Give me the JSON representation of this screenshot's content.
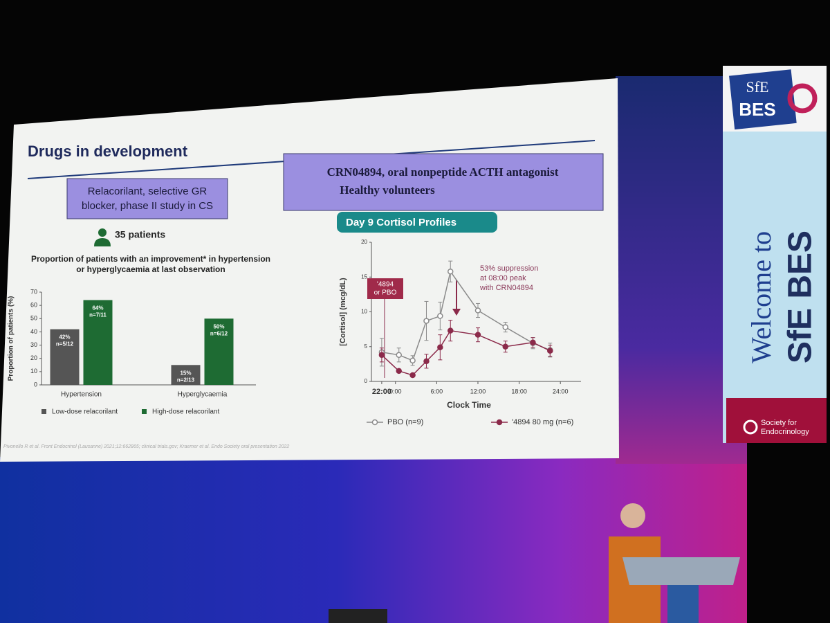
{
  "slide": {
    "title": "Drugs in development",
    "box_left": [
      "Relacorilant, selective GR",
      "blocker, phase II study in CS"
    ],
    "box_right": [
      "CRN04894, oral nonpeptide ACTH antagonist",
      "Healthy volunteers"
    ],
    "patients": "35 patients",
    "footnote": "Pivonello R et al. Front Endocrinol (Lausanne) 2021;12:662865; clinical trials.gov; Kraemer et al. Endo Society oral presentation 2022"
  },
  "banner": {
    "logo_top": "SfE",
    "logo_bottom": "BES",
    "welcome": "Welcome to",
    "name": "SfE BES",
    "society": [
      "Society for",
      "Endocrinology"
    ]
  },
  "chart_data": [
    {
      "type": "bar",
      "title": [
        "Proportion of patients with an improvement* in hypertension",
        "or hyperglycaemia at last observation"
      ],
      "y_label": "Proportion of patients (%)",
      "categories": [
        "Hypertension",
        "Hyperglycaemia"
      ],
      "series": [
        {
          "name": "Low-dose relacorilant",
          "color": "#555555",
          "values": [
            42,
            15
          ],
          "value_labels": [
            "42%",
            "15%"
          ],
          "n_labels": [
            "n=5/12",
            "n=2/13"
          ]
        },
        {
          "name": "High-dose relacorilant",
          "color": "#1e6b33",
          "values": [
            64,
            50
          ],
          "value_labels": [
            "64%",
            "50%"
          ],
          "n_labels": [
            "n=7/11",
            "n=6/12"
          ]
        }
      ],
      "ylim": [
        0,
        70
      ],
      "yticks": [
        0,
        10,
        20,
        30,
        40,
        50,
        60,
        70
      ]
    },
    {
      "type": "line",
      "title": "Day 9 Cortisol Profiles",
      "x_label": "Clock Time",
      "y_label": "[Cortisol] (mcg/dL)",
      "x": [
        -2,
        0.5,
        2.5,
        4.5,
        6.5,
        8,
        12,
        16,
        20,
        22.5
      ],
      "series": [
        {
          "name": "PBO (n=9)",
          "color": "#8a8a8a",
          "marker": "open",
          "values": [
            4.2,
            3.8,
            3.0,
            8.7,
            9.4,
            15.8,
            10.2,
            7.8,
            5.5,
            4.5
          ],
          "errors": [
            2.0,
            1.0,
            0.7,
            2.8,
            2.0,
            1.5,
            1.0,
            0.7,
            0.8,
            1.0
          ]
        },
        {
          "name": "'4894 80 mg (n=6)",
          "color": "#8b2a4a",
          "marker": "filled",
          "values": [
            3.8,
            1.5,
            0.9,
            2.9,
            4.9,
            7.3,
            6.7,
            5.0,
            5.6,
            4.4
          ],
          "errors": [
            1.0,
            0.2,
            0.2,
            1.0,
            1.8,
            1.5,
            1.0,
            0.8,
            0.7,
            0.8
          ]
        }
      ],
      "xlim": [
        -3.5,
        27
      ],
      "ylim": [
        0,
        20
      ],
      "xticks": [
        {
          "value": -2,
          "label": "22:00"
        },
        {
          "value": 0,
          "label": "0:00"
        },
        {
          "value": 6,
          "label": "6:00"
        },
        {
          "value": 12,
          "label": "12:00"
        },
        {
          "value": 18,
          "label": "18:00"
        },
        {
          "value": 24,
          "label": "24:00"
        }
      ],
      "yticks": [
        0,
        5,
        10,
        15,
        20
      ],
      "annotations": [
        [
          "'4894",
          "or PBO"
        ],
        [
          "53% suppression",
          "at 08:00 peak",
          "with CRN04894"
        ]
      ]
    }
  ]
}
